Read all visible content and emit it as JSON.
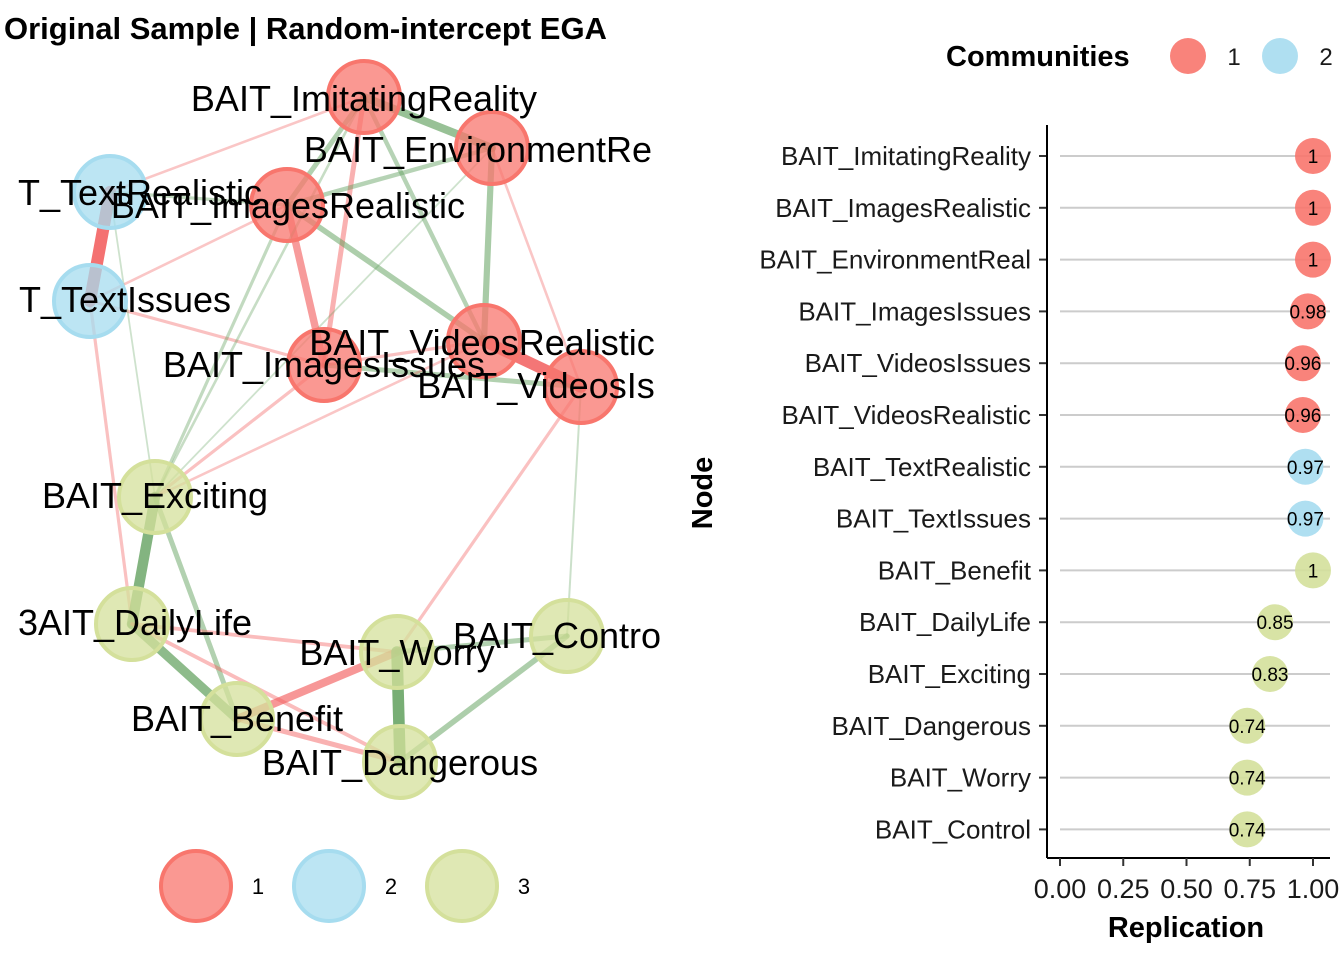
{
  "colors": {
    "community_1": "#f8766d",
    "community_2": "#a6dcef",
    "community_3": "#d4e09b",
    "positive_edge": "#5e9e5a",
    "negative_edge": "#f25c5c",
    "axis": "#000000",
    "gridline": "#cccccc"
  },
  "chart_data": [
    {
      "type": "network",
      "title": "Original Sample | Random-intercept EGA",
      "legend_position": "bottom",
      "legend": [
        "1",
        "2",
        "3"
      ],
      "nodes": [
        {
          "id": "BAIT_ImitatingReality",
          "label": "BAIT_ImitatingReality",
          "community": 1
        },
        {
          "id": "BAIT_EnvironmentReal",
          "label": "BAIT_EnvironmentRe",
          "community": 1
        },
        {
          "id": "BAIT_ImagesRealistic",
          "label": "BAIT_ImagesRealistic",
          "community": 1
        },
        {
          "id": "BAIT_ImagesIssues",
          "label": "BAIT_ImagesIssues",
          "community": 1
        },
        {
          "id": "BAIT_VideosRealistic",
          "label": "BAIT_VideosRealistic",
          "community": 1
        },
        {
          "id": "BAIT_VideosIssues",
          "label": "BAIT_VideosIs",
          "community": 1
        },
        {
          "id": "BAIT_TextRealistic",
          "label": "T_TextRealistic",
          "community": 2
        },
        {
          "id": "BAIT_TextIssues",
          "label": "T_TextIssues",
          "community": 2
        },
        {
          "id": "BAIT_Exciting",
          "label": "BAIT_Exciting",
          "community": 3
        },
        {
          "id": "BAIT_DailyLife",
          "label": "3AIT_DailyLife",
          "community": 3
        },
        {
          "id": "BAIT_Benefit",
          "label": "BAIT_Benefit",
          "community": 3
        },
        {
          "id": "BAIT_Worry",
          "label": "BAIT_Worry",
          "community": 3
        },
        {
          "id": "BAIT_Control",
          "label": "BAIT_Contro",
          "community": 3
        },
        {
          "id": "BAIT_Dangerous",
          "label": "BAIT_Dangerous",
          "community": 3
        }
      ],
      "edges": [
        {
          "a": "BAIT_TextRealistic",
          "b": "BAIT_TextIssues",
          "sign": "negative",
          "strength": 0.95
        },
        {
          "a": "BAIT_VideosRealistic",
          "b": "BAIT_VideosIssues",
          "sign": "negative",
          "strength": 0.9
        },
        {
          "a": "BAIT_ImagesRealistic",
          "b": "BAIT_ImagesIssues",
          "sign": "negative",
          "strength": 0.55
        },
        {
          "a": "BAIT_ImitatingReality",
          "b": "BAIT_EnvironmentReal",
          "sign": "positive",
          "strength": 0.6
        },
        {
          "a": "BAIT_ImitatingReality",
          "b": "BAIT_ImagesRealistic",
          "sign": "positive",
          "strength": 0.35
        },
        {
          "a": "BAIT_ImitatingReality",
          "b": "BAIT_ImagesIssues",
          "sign": "negative",
          "strength": 0.35
        },
        {
          "a": "BAIT_ImitatingReality",
          "b": "BAIT_VideosRealistic",
          "sign": "positive",
          "strength": 0.3
        },
        {
          "a": "BAIT_EnvironmentReal",
          "b": "BAIT_ImagesRealistic",
          "sign": "positive",
          "strength": 0.3
        },
        {
          "a": "BAIT_EnvironmentReal",
          "b": "BAIT_VideosRealistic",
          "sign": "positive",
          "strength": 0.45
        },
        {
          "a": "BAIT_EnvironmentReal",
          "b": "BAIT_VideosIssues",
          "sign": "negative",
          "strength": 0.15
        },
        {
          "a": "BAIT_ImagesRealistic",
          "b": "BAIT_VideosRealistic",
          "sign": "positive",
          "strength": 0.4
        },
        {
          "a": "BAIT_ImagesIssues",
          "b": "BAIT_VideosIssues",
          "sign": "positive",
          "strength": 0.35
        },
        {
          "a": "BAIT_ImagesIssues",
          "b": "BAIT_VideosRealistic",
          "sign": "negative",
          "strength": 0.2
        },
        {
          "a": "BAIT_TextRealistic",
          "b": "BAIT_ImagesRealistic",
          "sign": "positive",
          "strength": 0.2
        },
        {
          "a": "BAIT_TextRealistic",
          "b": "BAIT_ImitatingReality",
          "sign": "negative",
          "strength": 0.15
        },
        {
          "a": "BAIT_TextIssues",
          "b": "BAIT_ImagesIssues",
          "sign": "negative",
          "strength": 0.2
        },
        {
          "a": "BAIT_TextIssues",
          "b": "BAIT_ImagesRealistic",
          "sign": "negative",
          "strength": 0.15
        },
        {
          "a": "BAIT_TextIssues",
          "b": "BAIT_DailyLife",
          "sign": "negative",
          "strength": 0.2
        },
        {
          "a": "BAIT_ImagesRealistic",
          "b": "BAIT_Exciting",
          "sign": "positive",
          "strength": 0.2
        },
        {
          "a": "BAIT_ImagesIssues",
          "b": "BAIT_Exciting",
          "sign": "negative",
          "strength": 0.2
        },
        {
          "a": "BAIT_VideosRealistic",
          "b": "BAIT_Exciting",
          "sign": "negative",
          "strength": 0.15
        },
        {
          "a": "BAIT_VideosIssues",
          "b": "BAIT_Worry",
          "sign": "negative",
          "strength": 0.2
        },
        {
          "a": "BAIT_VideosIssues",
          "b": "BAIT_Control",
          "sign": "positive",
          "strength": 0.1
        },
        {
          "a": "BAIT_Exciting",
          "b": "BAIT_DailyLife",
          "sign": "positive",
          "strength": 0.8
        },
        {
          "a": "BAIT_Exciting",
          "b": "BAIT_Benefit",
          "sign": "positive",
          "strength": 0.35
        },
        {
          "a": "BAIT_Exciting",
          "b": "BAIT_ImitatingReality",
          "sign": "positive",
          "strength": 0.15
        },
        {
          "a": "BAIT_DailyLife",
          "b": "BAIT_Benefit",
          "sign": "positive",
          "strength": 0.7
        },
        {
          "a": "BAIT_DailyLife",
          "b": "BAIT_Worry",
          "sign": "negative",
          "strength": 0.25
        },
        {
          "a": "BAIT_DailyLife",
          "b": "BAIT_Dangerous",
          "sign": "negative",
          "strength": 0.25
        },
        {
          "a": "BAIT_Benefit",
          "b": "BAIT_Worry",
          "sign": "negative",
          "strength": 0.6
        },
        {
          "a": "BAIT_Benefit",
          "b": "BAIT_Dangerous",
          "sign": "negative",
          "strength": 0.35
        },
        {
          "a": "BAIT_Worry",
          "b": "BAIT_Dangerous",
          "sign": "positive",
          "strength": 0.9
        },
        {
          "a": "BAIT_Worry",
          "b": "BAIT_Control",
          "sign": "positive",
          "strength": 0.35
        },
        {
          "a": "BAIT_Control",
          "b": "BAIT_Dangerous",
          "sign": "positive",
          "strength": 0.4
        },
        {
          "a": "BAIT_TextRealistic",
          "b": "BAIT_Exciting",
          "sign": "positive",
          "strength": 0.08
        },
        {
          "a": "BAIT_EnvironmentReal",
          "b": "BAIT_Exciting",
          "sign": "positive",
          "strength": 0.08
        }
      ]
    },
    {
      "type": "dot",
      "xlabel": "Replication",
      "ylabel": "Node",
      "xlim": [
        0,
        1
      ],
      "xticks": [
        "0.00",
        "0.25",
        "0.50",
        "0.75",
        "1.00"
      ],
      "legend_title": "Communities",
      "legend_position": "top-right",
      "legend": [
        "1",
        "2"
      ],
      "categories": [
        "BAIT_ImitatingReality",
        "BAIT_ImagesRealistic",
        "BAIT_EnvironmentReal",
        "BAIT_ImagesIssues",
        "BAIT_VideosIssues",
        "BAIT_VideosRealistic",
        "BAIT_TextRealistic",
        "BAIT_TextIssues",
        "BAIT_Benefit",
        "BAIT_DailyLife",
        "BAIT_Exciting",
        "BAIT_Dangerous",
        "BAIT_Worry",
        "BAIT_Control"
      ],
      "values": [
        1,
        1,
        1,
        0.98,
        0.96,
        0.96,
        0.97,
        0.97,
        1,
        0.85,
        0.83,
        0.74,
        0.74,
        0.74
      ],
      "value_labels": [
        "1",
        "1",
        "1",
        "0.98",
        "0.96",
        "0.96",
        "0.97",
        "0.97",
        "1",
        "0.85",
        "0.83",
        "0.74",
        "0.74",
        "0.74"
      ],
      "communities": [
        1,
        1,
        1,
        1,
        1,
        1,
        2,
        2,
        3,
        3,
        3,
        3,
        3,
        3
      ]
    }
  ]
}
